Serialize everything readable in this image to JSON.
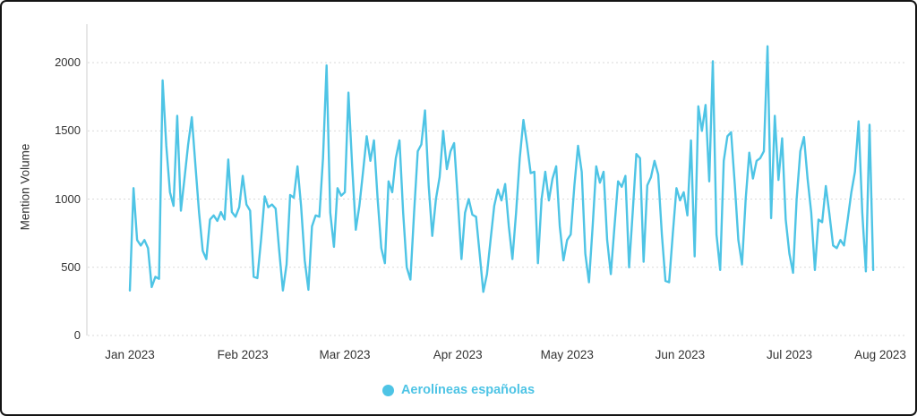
{
  "chart": {
    "background": "#ffffff",
    "border_color": "#141414"
  },
  "colors": {
    "series_line": "#4ec4e5",
    "legend_text": "#4ec4e5",
    "grid_line": "#d9d9d9",
    "axis_line": "#cfcfcf",
    "tick_text": "#333333"
  },
  "chart_data": {
    "type": "line",
    "title": "",
    "xlabel": "",
    "ylabel": "Mention Volume",
    "ylim": [
      0,
      2200
    ],
    "yticks": [
      0,
      500,
      1000,
      1500,
      2000
    ],
    "grid": "horizontal-dotted",
    "legend_position": "bottom-center",
    "x_tick_labels": [
      {
        "label": "Jan 2023",
        "day": 0
      },
      {
        "label": "Feb 2023",
        "day": 31
      },
      {
        "label": "Mar 2023",
        "day": 59
      },
      {
        "label": "Apr 2023",
        "day": 90
      },
      {
        "label": "May 2023",
        "day": 120
      },
      {
        "label": "Jun 2023",
        "day": 151
      },
      {
        "label": "Jul 2023",
        "day": 181
      },
      {
        "label": "Aug 2023",
        "day": 212
      }
    ],
    "series": [
      {
        "name": "Aerolíneas españolas",
        "color": "#4ec4e5",
        "start_date": "2023-01-01",
        "frequency": "daily",
        "values": [
          330,
          1080,
          700,
          660,
          700,
          640,
          355,
          430,
          415,
          1870,
          1390,
          1050,
          950,
          1610,
          915,
          1150,
          1400,
          1600,
          1250,
          900,
          620,
          560,
          850,
          880,
          840,
          905,
          850,
          1290,
          905,
          870,
          940,
          1170,
          960,
          915,
          430,
          420,
          700,
          1020,
          940,
          960,
          930,
          620,
          330,
          520,
          1030,
          1010,
          1240,
          950,
          550,
          335,
          800,
          880,
          870,
          1300,
          1980,
          900,
          650,
          1080,
          1025,
          1050,
          1780,
          1250,
          775,
          950,
          1200,
          1460,
          1280,
          1430,
          1000,
          640,
          530,
          1130,
          1050,
          1300,
          1430,
          900,
          500,
          410,
          900,
          1350,
          1400,
          1650,
          1100,
          730,
          1000,
          1160,
          1500,
          1220,
          1350,
          1410,
          1000,
          560,
          900,
          1000,
          885,
          870,
          600,
          320,
          450,
          700,
          950,
          1070,
          990,
          1110,
          800,
          560,
          900,
          1300,
          1580,
          1400,
          1190,
          1200,
          530,
          1000,
          1200,
          990,
          1150,
          1240,
          800,
          550,
          700,
          740,
          1100,
          1390,
          1200,
          600,
          390,
          800,
          1240,
          1120,
          1200,
          700,
          450,
          800,
          1130,
          1090,
          1170,
          500,
          900,
          1330,
          1300,
          540,
          1100,
          1160,
          1280,
          1180,
          740,
          400,
          390,
          745,
          1080,
          990,
          1050,
          880,
          1430,
          580,
          1680,
          1500,
          1690,
          1130,
          2010,
          740,
          480,
          1280,
          1460,
          1490,
          1110,
          700,
          520,
          1000,
          1340,
          1150,
          1280,
          1300,
          1350,
          2120,
          860,
          1610,
          1140,
          1445,
          850,
          600,
          460,
          1000,
          1350,
          1455,
          1150,
          900,
          480,
          850,
          830,
          1095,
          890,
          660,
          640,
          700,
          660,
          850,
          1050,
          1200,
          1570,
          900,
          470,
          1545,
          480
        ]
      }
    ]
  }
}
